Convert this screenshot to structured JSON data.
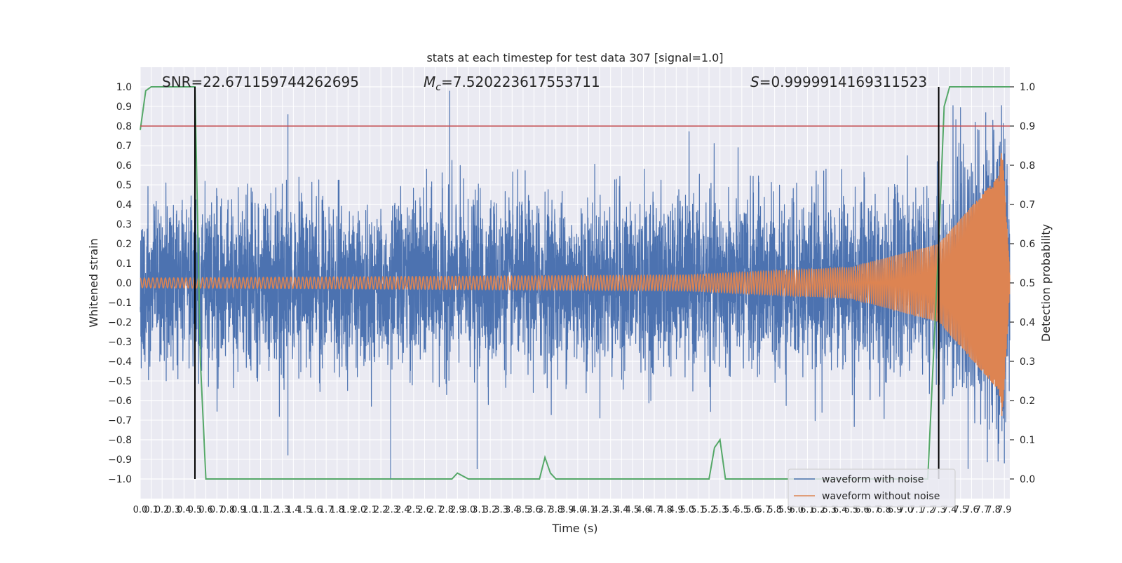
{
  "chart_data": {
    "type": "line",
    "title": "stats at each timestep for test data 307 [signal=1.0]",
    "xlabel": "Time (s)",
    "ylabel": "Whitened strain",
    "y2label": "Detection probability",
    "xlim": [
      0.0,
      7.95
    ],
    "ylim": [
      -1.1,
      1.1
    ],
    "y2lim": [
      -0.05,
      1.05
    ],
    "x_ticks": [
      0.0,
      0.1,
      0.2,
      0.3,
      0.4,
      0.5,
      0.6,
      0.7,
      0.8,
      0.9,
      1.0,
      1.1,
      1.2,
      1.3,
      1.4,
      1.5,
      1.6,
      1.7,
      1.8,
      1.9,
      2.0,
      2.1,
      2.2,
      2.3,
      2.4,
      2.5,
      2.6,
      2.7,
      2.8,
      2.9,
      3.0,
      3.1,
      3.2,
      3.3,
      3.4,
      3.5,
      3.6,
      3.7,
      3.8,
      3.9,
      4.0,
      4.1,
      4.2,
      4.3,
      4.4,
      4.5,
      4.6,
      4.7,
      4.8,
      4.9,
      5.0,
      5.1,
      5.2,
      5.3,
      5.4,
      5.5,
      5.6,
      5.7,
      5.8,
      5.9,
      6.0,
      6.1,
      6.2,
      6.3,
      6.4,
      6.5,
      6.6,
      6.7,
      6.8,
      6.9,
      7.0,
      7.1,
      7.2,
      7.3,
      7.4,
      7.5,
      7.6,
      7.7,
      7.8,
      7.9
    ],
    "x_tick_labels": [
      "0.0",
      "0.1",
      "0.2",
      "0.3",
      "0.4",
      "0.5",
      "0.6",
      "0.7",
      "0.8",
      "0.9",
      "1.0",
      "1.1",
      "1.2",
      "1.3",
      "1.4",
      "1.5",
      "1.6",
      "1.7",
      "1.8",
      "1.9",
      "2.0",
      "2.1",
      "2.2",
      "2.3",
      "2.4",
      "2.5",
      "2.6",
      "2.7",
      "2.8",
      "2.9",
      "3.0",
      "3.1",
      "3.2",
      "3.3",
      "3.4",
      "3.5",
      "3.6",
      "3.7",
      "3.8",
      "3.9",
      "4.0",
      "4.1",
      "4.2",
      "4.3",
      "4.4",
      "4.5",
      "4.6",
      "4.7",
      "4.8",
      "4.9",
      "5.0",
      "5.1",
      "5.2",
      "5.3",
      "5.4",
      "5.5",
      "5.6",
      "5.7",
      "5.8",
      "5.9",
      "6.0",
      "6.1",
      "6.2",
      "6.3",
      "6.4",
      "6.5",
      "6.6",
      "6.7",
      "6.8",
      "6.9",
      "7.0",
      "7.1",
      "7.2",
      "7.3",
      "7.4",
      "7.5",
      "7.6",
      "7.7",
      "7.8",
      "7.9"
    ],
    "y_ticks": [
      -1.0,
      -0.9,
      -0.8,
      -0.7,
      -0.6,
      -0.5,
      -0.4,
      -0.3,
      -0.2,
      -0.1,
      0.0,
      0.1,
      0.2,
      0.3,
      0.4,
      0.5,
      0.6,
      0.7,
      0.8,
      0.9,
      1.0
    ],
    "y_tick_labels": [
      "−1.0",
      "−0.9",
      "−0.8",
      "−0.7",
      "−0.6",
      "−0.5",
      "−0.4",
      "−0.3",
      "−0.2",
      "−0.1",
      "0.0",
      "0.1",
      "0.2",
      "0.3",
      "0.4",
      "0.5",
      "0.6",
      "0.7",
      "0.8",
      "0.9",
      "1.0"
    ],
    "y2_ticks": [
      0.0,
      0.1,
      0.2,
      0.3,
      0.4,
      0.5,
      0.6,
      0.7,
      0.8,
      0.9,
      1.0
    ],
    "y2_tick_labels": [
      "0.0",
      "0.1",
      "0.2",
      "0.3",
      "0.4",
      "0.5",
      "0.6",
      "0.7",
      "0.8",
      "0.9",
      "1.0"
    ],
    "annotations": {
      "snr": "SNR=22.671159744262695",
      "mc_symbol": "M",
      "mc_sub": "c",
      "mc_value": "=7.520223617553711",
      "s_symbol": "S",
      "s_value": "=0.9999914169311523"
    },
    "threshold": {
      "y2": 0.9,
      "color": "#c44e52"
    },
    "markers": [
      {
        "x": 0.5,
        "y_from": -1.0,
        "y_to": 1.0
      },
      {
        "x": 7.3,
        "y_from": -1.0,
        "y_to": 1.0
      }
    ],
    "series": [
      {
        "name": "waveform with noise",
        "color": "#4c72b0",
        "model": "noisy",
        "envelope": {
          "t": [
            0.0,
            7.8,
            7.95
          ],
          "sigma": [
            0.2,
            0.21,
            0.2
          ]
        },
        "peaks": [
          {
            "x": 1.35,
            "y": 0.86
          },
          {
            "x": 2.83,
            "y": 0.98
          },
          {
            "x": 7.73,
            "y": 0.87
          },
          {
            "x": 2.29,
            "y": -1.0
          },
          {
            "x": 7.9,
            "y": -0.92
          },
          {
            "x": 1.35,
            "y": -0.88
          },
          {
            "x": 3.08,
            "y": -0.95
          },
          {
            "x": 7.85,
            "y": -0.82
          }
        ]
      },
      {
        "name": "waveform without noise",
        "color": "#dd8452",
        "model": "chirp",
        "amplitude": {
          "t": [
            0.0,
            5.0,
            6.5,
            7.3,
            7.85,
            7.88,
            7.95
          ],
          "a": [
            0.025,
            0.04,
            0.08,
            0.2,
            0.55,
            0.7,
            0.05
          ]
        },
        "cycles": 330,
        "end_time": 7.95
      },
      {
        "name": "detection probability",
        "color": "#55a868",
        "axis": "y2",
        "x": [
          0.0,
          0.05,
          0.1,
          0.15,
          0.2,
          0.25,
          0.3,
          0.35,
          0.4,
          0.45,
          0.5,
          0.55,
          0.6,
          0.65,
          0.7,
          2.85,
          2.9,
          3.0,
          3.05,
          3.65,
          3.7,
          3.75,
          3.8,
          5.2,
          5.25,
          5.3,
          5.35,
          7.2,
          7.25,
          7.3,
          7.35,
          7.4,
          7.95
        ],
        "y": [
          0.89,
          0.99,
          1.0,
          1.0,
          1.0,
          1.0,
          1.0,
          1.0,
          1.0,
          1.0,
          1.0,
          0.3,
          0.0,
          0.0,
          0.0,
          0.0,
          0.015,
          0.0,
          0.0,
          0.0,
          0.055,
          0.015,
          0.0,
          0.0,
          0.08,
          0.1,
          0.0,
          0.0,
          0.3,
          0.6,
          0.95,
          1.0,
          1.0
        ]
      }
    ],
    "legend": {
      "placement": "lower-right",
      "entries": [
        {
          "label": "waveform with noise",
          "color": "#4c72b0"
        },
        {
          "label": "waveform without noise",
          "color": "#dd8452"
        }
      ]
    },
    "grid": true,
    "style": {
      "axes_bg": "#eaeaf2",
      "grid_color": "#ffffff",
      "marker_color": "#000000"
    }
  }
}
